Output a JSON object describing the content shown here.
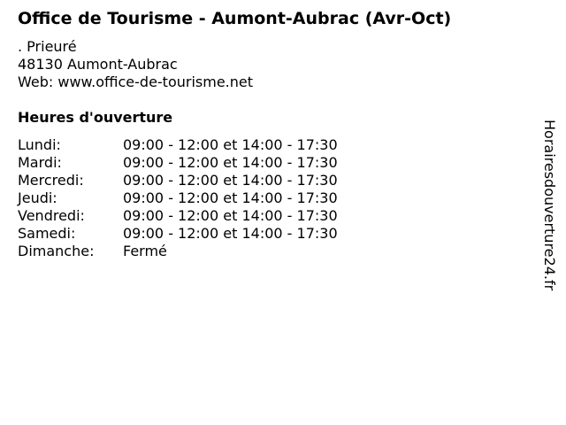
{
  "title": "Office de Tourisme - Aumont-Aubrac (Avr-Oct)",
  "address": [
    ". Prieuré",
    "48130 Aumont-Aubrac",
    "Web: www.office-de-tourisme.net"
  ],
  "hours_heading": "Heures d'ouverture",
  "hours": [
    {
      "day": "Lundi:",
      "time": "09:00 - 12:00 et 14:00 - 17:30"
    },
    {
      "day": "Mardi:",
      "time": "09:00 - 12:00 et 14:00 - 17:30"
    },
    {
      "day": "Mercredi:",
      "time": "09:00 - 12:00 et 14:00 - 17:30"
    },
    {
      "day": "Jeudi:",
      "time": "09:00 - 12:00 et 14:00 - 17:30"
    },
    {
      "day": "Vendredi:",
      "time": "09:00 - 12:00 et 14:00 - 17:30"
    },
    {
      "day": "Samedi:",
      "time": "09:00 - 12:00 et 14:00 - 17:30"
    },
    {
      "day": "Dimanche:",
      "time": "Fermé"
    }
  ],
  "watermark": "Horairesdouverture24.fr"
}
